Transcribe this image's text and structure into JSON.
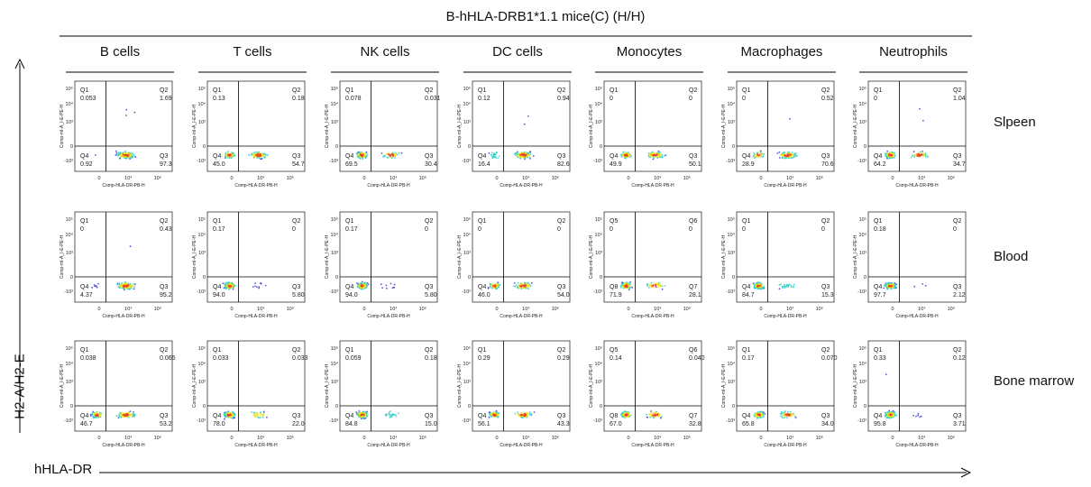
{
  "title": "B-hHLA-DRB1*1.1 mice(C) (H/H)",
  "columns": [
    "B cells",
    "T cells",
    "NK cells",
    "DC cells",
    "Monocytes",
    "Macrophages",
    "Neutrophils"
  ],
  "rows": [
    "Slpeen",
    "Blood",
    "Bone marrow"
  ],
  "y_axis_label": "H2-A/H2-E",
  "x_axis_label": "hHLA-DR",
  "panel_axes": {
    "ylabel": "Comp-mI-A_I-E-PE-H",
    "xlabel": "Comp-HLA-DR-PB-H",
    "yticks": [
      "10⁵",
      "10⁴",
      "10³",
      "0",
      "-10³"
    ],
    "xticks": [
      "0",
      "10⁴",
      "10⁶"
    ]
  },
  "colors": {
    "density_low": "#3a3ad6",
    "density_mid": "#2ad0c8",
    "density_high": "#f0e020",
    "density_peak": "#e8402a"
  },
  "chart_data": [
    {
      "type": "scatter",
      "row": "Slpeen",
      "column": "B cells",
      "quadrants": {
        "Q1": "0.053",
        "Q2": "1.69",
        "Q3": "97.3",
        "Q4": "0.92"
      }
    },
    {
      "type": "scatter",
      "row": "Slpeen",
      "column": "T cells",
      "quadrants": {
        "Q1": "0.13",
        "Q2": "0.18",
        "Q3": "54.7",
        "Q4": "45.0"
      }
    },
    {
      "type": "scatter",
      "row": "Slpeen",
      "column": "NK cells",
      "quadrants": {
        "Q1": "0.078",
        "Q2": "0.031",
        "Q3": "30.4",
        "Q4": "69.5"
      }
    },
    {
      "type": "scatter",
      "row": "Slpeen",
      "column": "DC cells",
      "quadrants": {
        "Q1": "0.12",
        "Q2": "0.94",
        "Q3": "82.6",
        "Q4": "16.4"
      }
    },
    {
      "type": "scatter",
      "row": "Slpeen",
      "column": "Monocytes",
      "quadrants": {
        "Q1": "0",
        "Q2": "0",
        "Q3": "50.1",
        "Q4": "49.9"
      }
    },
    {
      "type": "scatter",
      "row": "Slpeen",
      "column": "Macrophages",
      "quadrants": {
        "Q1": "0",
        "Q2": "0.52",
        "Q3": "70.6",
        "Q4": "28.9"
      }
    },
    {
      "type": "scatter",
      "row": "Slpeen",
      "column": "Neutrophils",
      "quadrants": {
        "Q1": "0",
        "Q2": "1.04",
        "Q3": "34.7",
        "Q4": "64.2"
      }
    },
    {
      "type": "scatter",
      "row": "Blood",
      "column": "B cells",
      "quadrants": {
        "Q1": "0",
        "Q2": "0.43",
        "Q3": "95.2",
        "Q4": "4.37"
      }
    },
    {
      "type": "scatter",
      "row": "Blood",
      "column": "T cells",
      "quadrants": {
        "Q1": "0.17",
        "Q2": "0",
        "Q3": "5.80",
        "Q4": "94.0"
      }
    },
    {
      "type": "scatter",
      "row": "Blood",
      "column": "NK cells",
      "quadrants": {
        "Q1": "0.17",
        "Q2": "0",
        "Q3": "5.80",
        "Q4": "94.0"
      }
    },
    {
      "type": "scatter",
      "row": "Blood",
      "column": "DC cells",
      "quadrants": {
        "Q1": "0",
        "Q2": "0",
        "Q3": "54.0",
        "Q4": "46.0"
      }
    },
    {
      "type": "scatter",
      "row": "Blood",
      "column": "Monocytes",
      "quadrants": {
        "Q5": "0",
        "Q6": "0",
        "Q7": "28.1",
        "Q8": "71.9"
      }
    },
    {
      "type": "scatter",
      "row": "Blood",
      "column": "Macrophages",
      "quadrants": {
        "Q1": "0",
        "Q2": "0",
        "Q3": "15.3",
        "Q4": "84.7"
      }
    },
    {
      "type": "scatter",
      "row": "Blood",
      "column": "Neutrophils",
      "quadrants": {
        "Q1": "0.18",
        "Q2": "0",
        "Q3": "2.12",
        "Q4": "97.7"
      }
    },
    {
      "type": "scatter",
      "row": "Bone marrow",
      "column": "B cells",
      "quadrants": {
        "Q1": "0.038",
        "Q2": "0.065",
        "Q3": "53.2",
        "Q4": "46.7"
      }
    },
    {
      "type": "scatter",
      "row": "Bone marrow",
      "column": "T cells",
      "quadrants": {
        "Q1": "0.033",
        "Q2": "0.033",
        "Q3": "22.0",
        "Q4": "78.0"
      }
    },
    {
      "type": "scatter",
      "row": "Bone marrow",
      "column": "NK cells",
      "quadrants": {
        "Q1": "0.059",
        "Q2": "0.18",
        "Q3": "15.0",
        "Q4": "84.8"
      }
    },
    {
      "type": "scatter",
      "row": "Bone marrow",
      "column": "DC cells",
      "quadrants": {
        "Q1": "0.29",
        "Q2": "0.29",
        "Q3": "43.3",
        "Q4": "56.1"
      }
    },
    {
      "type": "scatter",
      "row": "Bone marrow",
      "column": "Monocytes",
      "quadrants": {
        "Q5": "0.14",
        "Q6": "0.040",
        "Q7": "32.8",
        "Q8": "67.0"
      }
    },
    {
      "type": "scatter",
      "row": "Bone marrow",
      "column": "Macrophages",
      "quadrants": {
        "Q1": "0.17",
        "Q2": "0.070",
        "Q3": "34.0",
        "Q4": "65.8"
      }
    },
    {
      "type": "scatter",
      "row": "Bone marrow",
      "column": "Neutrophils",
      "quadrants": {
        "Q1": "0.33",
        "Q2": "0.12",
        "Q3": "3.71",
        "Q4": "95.8"
      }
    }
  ]
}
